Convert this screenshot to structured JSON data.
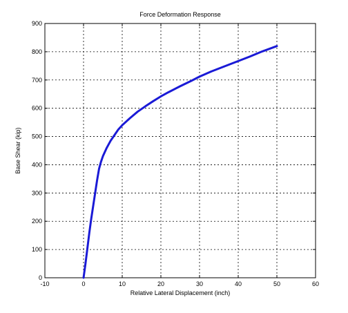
{
  "chart_data": {
    "type": "line",
    "title": "Force Deformation Response",
    "xlabel": "Relative Lateral Displacement (inch)",
    "ylabel": "Base Shear (kip)",
    "xlim": [
      -10,
      60
    ],
    "ylim": [
      0,
      900
    ],
    "xticks": [
      -10,
      0,
      10,
      20,
      30,
      40,
      50,
      60
    ],
    "yticks": [
      0,
      100,
      200,
      300,
      400,
      500,
      600,
      700,
      800,
      900
    ],
    "grid": true,
    "series": [
      {
        "color": "#1a1ad6",
        "x": [
          0,
          0.5,
          1,
          1.5,
          2,
          2.5,
          3,
          3.5,
          4,
          4.5,
          5,
          6,
          7,
          8,
          9,
          10,
          12,
          14,
          16,
          18,
          20,
          22,
          25,
          28,
          30,
          33,
          36,
          40,
          43,
          46,
          50
        ],
        "y": [
          0,
          50,
          105,
          160,
          210,
          255,
          300,
          345,
          385,
          410,
          430,
          460,
          485,
          505,
          525,
          540,
          565,
          588,
          607,
          625,
          642,
          657,
          678,
          698,
          712,
          730,
          746,
          767,
          783,
          800,
          820
        ]
      }
    ]
  }
}
